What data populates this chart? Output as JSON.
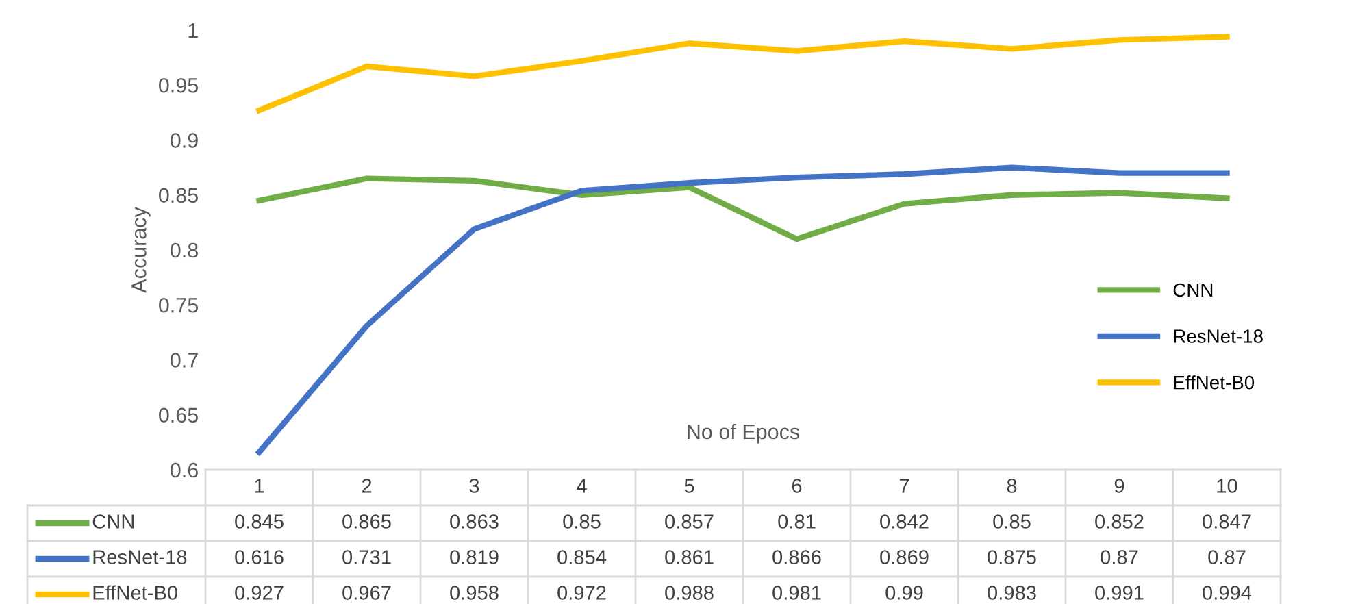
{
  "chart_data": {
    "type": "line",
    "xlabel": "No of Epocs",
    "ylabel": "Accuracy",
    "categories": [
      "1",
      "2",
      "3",
      "4",
      "5",
      "6",
      "7",
      "8",
      "9",
      "10"
    ],
    "series": [
      {
        "name": "CNN",
        "color": "#70ad47",
        "values": [
          0.845,
          0.865,
          0.863,
          0.85,
          0.857,
          0.81,
          0.842,
          0.85,
          0.852,
          0.847
        ]
      },
      {
        "name": "ResNet-18",
        "color": "#4472c4",
        "values": [
          0.616,
          0.731,
          0.819,
          0.854,
          0.861,
          0.866,
          0.869,
          0.875,
          0.87,
          0.87
        ]
      },
      {
        "name": "EffNet-B0",
        "color": "#ffc000",
        "values": [
          0.927,
          0.967,
          0.958,
          0.972,
          0.988,
          0.981,
          0.99,
          0.983,
          0.991,
          0.994
        ]
      }
    ],
    "ylim": [
      0.6,
      1
    ],
    "yticks": [
      0.6,
      0.65,
      0.7,
      0.75,
      0.8,
      0.85,
      0.9,
      0.95,
      1
    ],
    "grid": false,
    "legend": "right",
    "marker": "none",
    "line_style": "solid",
    "data_labels": true
  }
}
